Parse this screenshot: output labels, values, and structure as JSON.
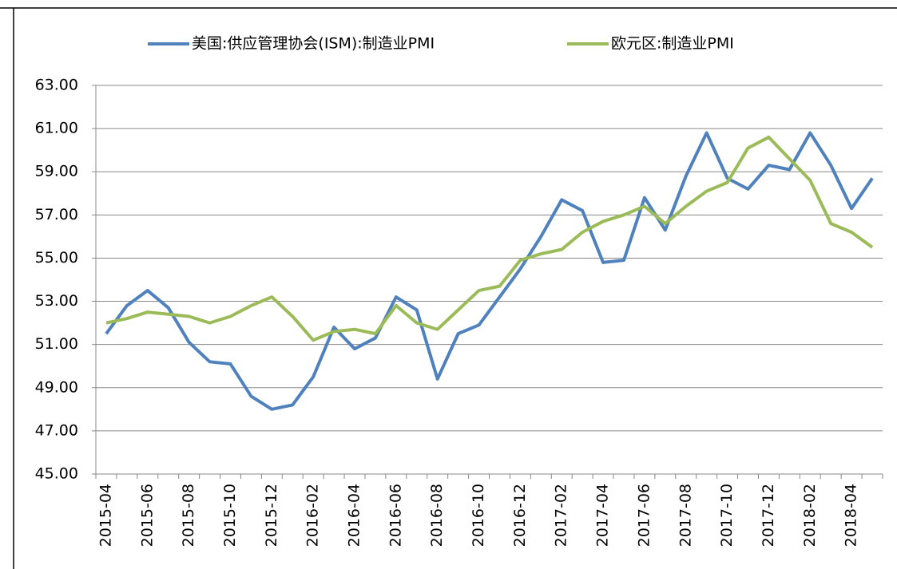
{
  "chart_data": {
    "type": "line",
    "categories": [
      "2015-04",
      null,
      "2015-06",
      null,
      "2015-08",
      null,
      "2015-10",
      null,
      "2015-12",
      null,
      "2016-02",
      null,
      "2016-04",
      null,
      "2016-06",
      null,
      "2016-08",
      null,
      "2016-10",
      null,
      "2016-12",
      null,
      "2017-02",
      null,
      "2017-04",
      null,
      "2017-06",
      null,
      "2017-08",
      null,
      "2017-10",
      null,
      "2017-12",
      null,
      "2018-02",
      null,
      "2018-04",
      null
    ],
    "series": [
      {
        "name": "美国:供应管理协会(ISM):制造业PMI",
        "color": "#4f81bd",
        "values": [
          51.5,
          52.8,
          53.5,
          52.7,
          51.1,
          50.2,
          50.1,
          48.6,
          48.0,
          48.2,
          49.5,
          51.8,
          50.8,
          51.3,
          53.2,
          52.6,
          49.4,
          51.5,
          51.9,
          53.2,
          54.5,
          56.0,
          57.7,
          57.2,
          54.8,
          54.9,
          57.8,
          56.3,
          58.8,
          60.8,
          58.7,
          58.2,
          59.3,
          59.1,
          60.8,
          59.3,
          57.3,
          58.7
        ]
      },
      {
        "name": "欧元区:制造业PMI",
        "color": "#9bbb59",
        "values": [
          52.0,
          52.2,
          52.5,
          52.4,
          52.3,
          52.0,
          52.3,
          52.8,
          53.2,
          52.3,
          51.2,
          51.6,
          51.7,
          51.5,
          52.8,
          52.0,
          51.7,
          52.6,
          53.5,
          53.7,
          54.9,
          55.2,
          55.4,
          56.2,
          56.7,
          57.0,
          57.4,
          56.6,
          57.4,
          58.1,
          58.5,
          60.1,
          60.6,
          59.6,
          58.6,
          56.6,
          56.2,
          55.5
        ]
      }
    ],
    "ylim": [
      45,
      63
    ],
    "yticks": [
      {
        "value": 45,
        "label": "45.00"
      },
      {
        "value": 47,
        "label": "47.00"
      },
      {
        "value": 49,
        "label": "49.00"
      },
      {
        "value": 51,
        "label": "51.00"
      },
      {
        "value": 53,
        "label": "53.00"
      },
      {
        "value": 55,
        "label": "55.00"
      },
      {
        "value": 57,
        "label": "57.00"
      },
      {
        "value": 59,
        "label": "59.00"
      },
      {
        "value": 61,
        "label": "61.00"
      },
      {
        "value": 63,
        "label": "63.00"
      }
    ],
    "grid": true,
    "legend": "top"
  }
}
